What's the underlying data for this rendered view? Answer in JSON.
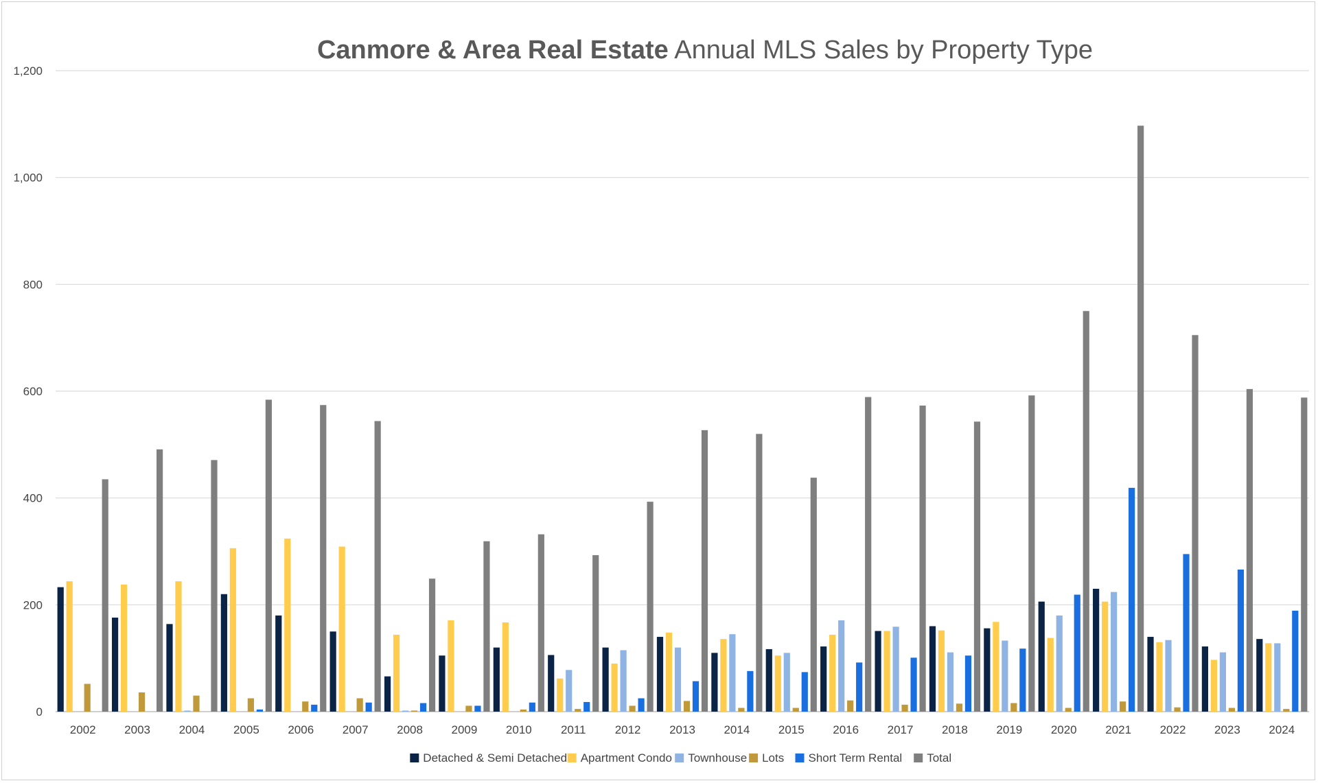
{
  "chart_data": {
    "type": "bar",
    "title_bold": "Canmore & Area Real Estate",
    "title_rest": "Annual MLS Sales by Property Type",
    "xlabel": "",
    "ylabel": "",
    "ylim": [
      0,
      1200
    ],
    "yticks": [
      0,
      200,
      400,
      600,
      800,
      1000,
      1200
    ],
    "ytick_labels": [
      "0",
      "200",
      "400",
      "600",
      "800",
      "1,000",
      "1,200"
    ],
    "grid": true,
    "legend_position": "bottom",
    "categories": [
      "2002",
      "2003",
      "2004",
      "2005",
      "2006",
      "2007",
      "2008",
      "2009",
      "2010",
      "2011",
      "2012",
      "2013",
      "2014",
      "2015",
      "2016",
      "2017",
      "2018",
      "2019",
      "2020",
      "2021",
      "2022",
      "2023",
      "2024"
    ],
    "series": [
      {
        "name": "Detached & Semi Detached",
        "color": "#0b2345",
        "values": [
          233,
          176,
          164,
          220,
          180,
          150,
          66,
          105,
          120,
          106,
          120,
          140,
          110,
          117,
          122,
          151,
          160,
          156,
          206,
          230,
          140,
          122,
          136
        ]
      },
      {
        "name": "Apartment Condo",
        "color": "#ffcc4d",
        "values": [
          244,
          238,
          244,
          306,
          324,
          309,
          144,
          171,
          167,
          62,
          90,
          148,
          136,
          105,
          144,
          151,
          152,
          168,
          138,
          206,
          130,
          97,
          128
        ]
      },
      {
        "name": "Townhouse",
        "color": "#8fb4e3",
        "values": [
          0,
          0,
          2,
          0,
          0,
          0,
          2,
          0,
          0,
          78,
          115,
          120,
          145,
          110,
          171,
          159,
          111,
          133,
          180,
          224,
          134,
          111,
          128
        ]
      },
      {
        "name": "Lots",
        "color": "#c09a3a",
        "values": [
          52,
          36,
          30,
          25,
          19,
          25,
          2,
          11,
          4,
          5,
          11,
          20,
          7,
          7,
          21,
          13,
          15,
          16,
          7,
          19,
          8,
          7,
          5
        ]
      },
      {
        "name": "Short Term Rental",
        "color": "#1a6fe0",
        "values": [
          0,
          0,
          0,
          4,
          13,
          17,
          16,
          11,
          17,
          18,
          25,
          57,
          76,
          74,
          92,
          101,
          105,
          118,
          219,
          419,
          295,
          266,
          189
        ]
      },
      {
        "name": "Total",
        "color": "#7f7f7f",
        "values": [
          435,
          491,
          471,
          584,
          574,
          544,
          249,
          319,
          332,
          293,
          393,
          527,
          520,
          438,
          589,
          573,
          543,
          592,
          750,
          1097,
          705,
          604,
          588
        ]
      }
    ]
  }
}
